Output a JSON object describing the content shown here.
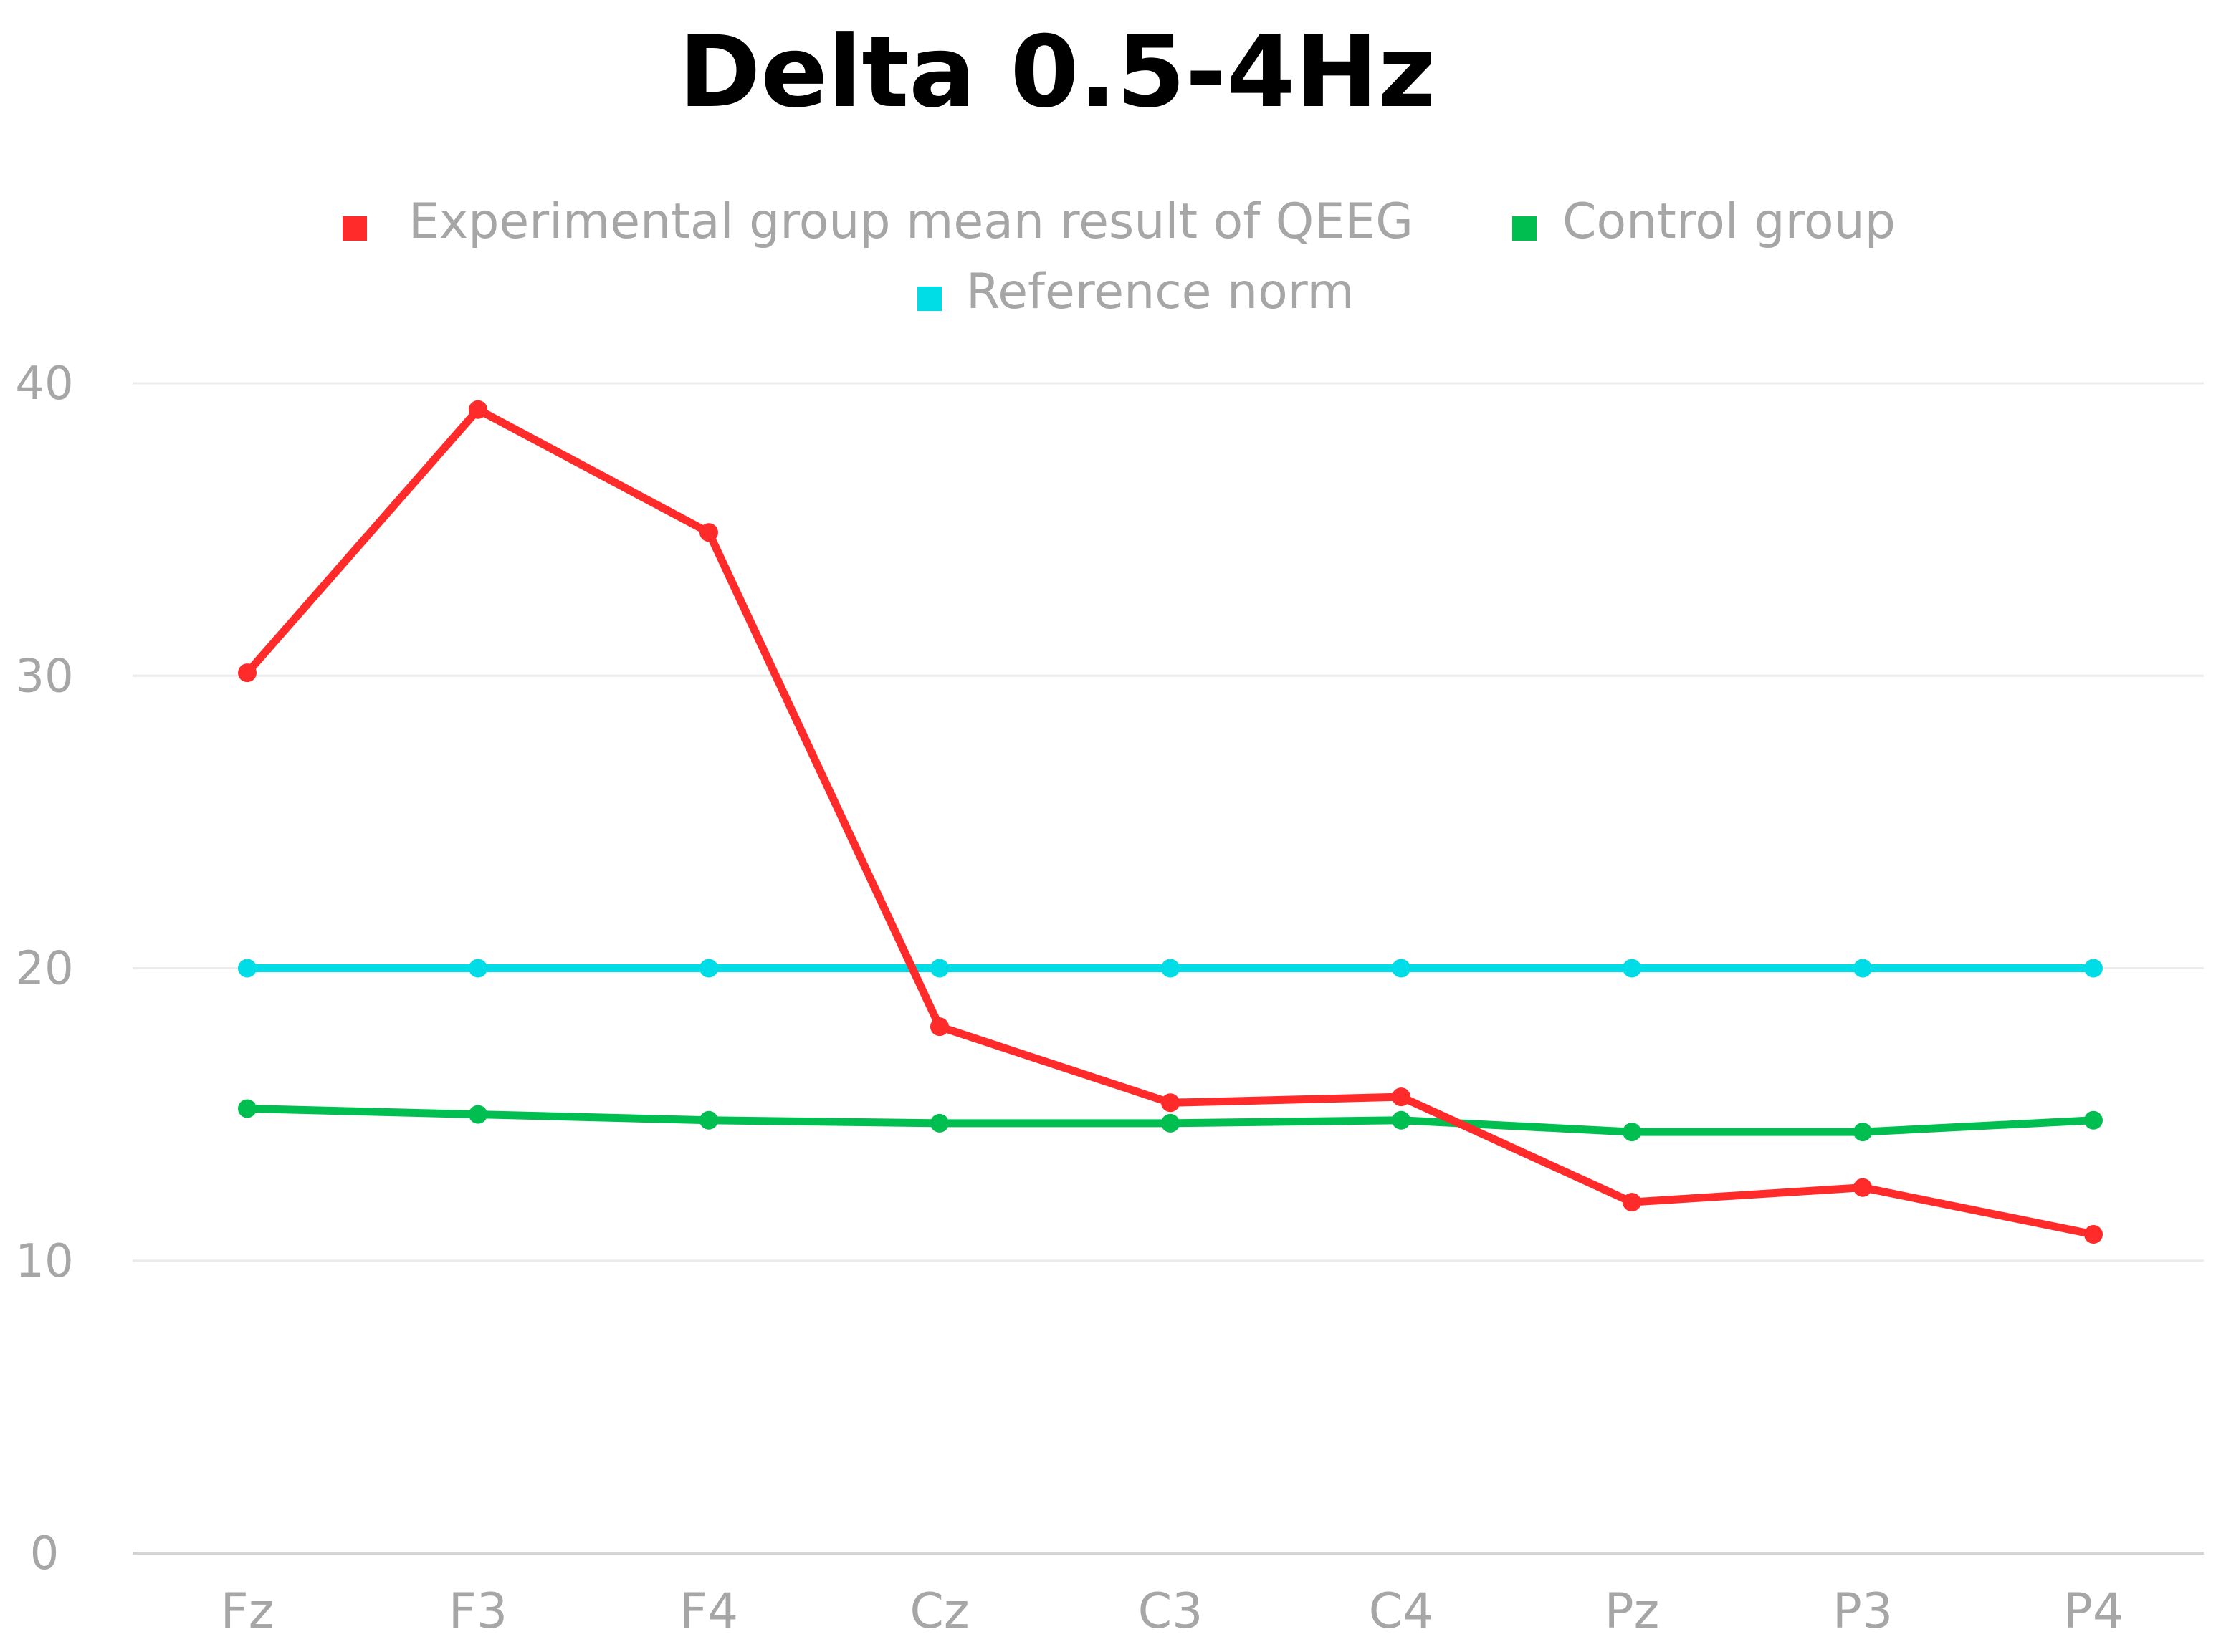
{
  "chart_data": {
    "type": "line",
    "title": "Delta 0.5-4Hz",
    "categories": [
      "Fz",
      "F3",
      "F4",
      "Cz",
      "C3",
      "C4",
      "Pz",
      "P3",
      "P4"
    ],
    "series": [
      {
        "name": "Experimental group mean result of QEEG",
        "color": "#ff2a2a",
        "values": [
          30.1,
          39.1,
          34.9,
          18.0,
          15.4,
          15.6,
          12.0,
          12.5,
          10.9
        ]
      },
      {
        "name": "Control group",
        "color": "#00bf50",
        "values": [
          15.2,
          15.0,
          14.8,
          14.7,
          14.7,
          14.8,
          14.4,
          14.4,
          14.8
        ]
      },
      {
        "name": "Reference norm",
        "color": "#00dde6",
        "values": [
          20,
          20,
          20,
          20,
          20,
          20,
          20,
          20,
          20
        ]
      }
    ],
    "yticks": [
      0,
      10,
      20,
      30,
      40
    ],
    "ylim": [
      0,
      40
    ],
    "xlabel": "",
    "ylabel": "",
    "grid": true,
    "legend_position": "top-center"
  }
}
